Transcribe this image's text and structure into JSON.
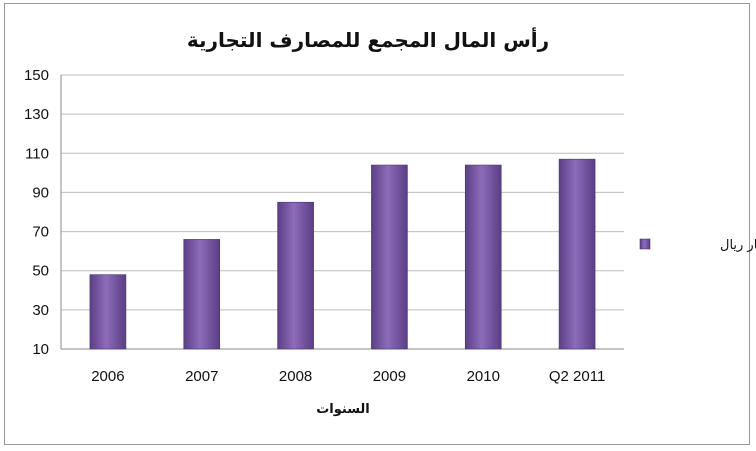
{
  "chart_data": {
    "type": "bar",
    "title": "رأس المال المجمع للمصارف التجارية",
    "xlabel": "السنوات",
    "ylabel": "",
    "categories": [
      "2006",
      "2007",
      "2008",
      "2009",
      "2010",
      "Q2 2011"
    ],
    "series": [
      {
        "name": "مليار ريال",
        "values": [
          48,
          66,
          85,
          104,
          104,
          107
        ]
      }
    ],
    "ylim": [
      10,
      150
    ],
    "yticks": [
      10,
      30,
      50,
      70,
      90,
      110,
      130,
      150
    ],
    "grid": true,
    "legend_position": "right",
    "colors": {
      "bar": "#7b5aa6",
      "bar_dark": "#4e3577",
      "grid": "#bdbdbd",
      "axis": "#8a8a8a"
    }
  }
}
